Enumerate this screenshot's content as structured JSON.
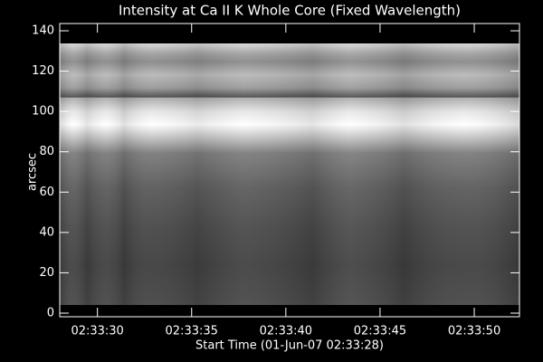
{
  "chart_data": {
    "type": "image",
    "title": "Intensity at Ca II K Whole Core (Fixed Wavelength)",
    "x_label": "Start Time (01-Jun-07 02:33:28)",
    "y_label": "arcsec",
    "xlim": [
      28,
      52.4
    ],
    "xticks": [
      {
        "value": 30,
        "label": "02:33:30"
      },
      {
        "value": 35,
        "label": "02:33:35"
      },
      {
        "value": 40,
        "label": "02:33:40"
      },
      {
        "value": 45,
        "label": "02:33:45"
      },
      {
        "value": 50,
        "label": "02:33:50"
      }
    ],
    "ylim": [
      -1.8,
      143.6
    ],
    "yticks": [
      0,
      20,
      40,
      60,
      80,
      100,
      120,
      140
    ]
  }
}
